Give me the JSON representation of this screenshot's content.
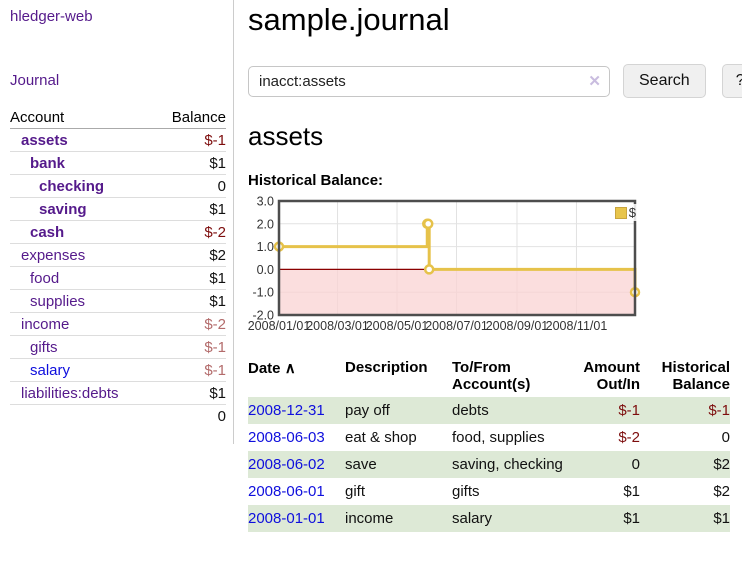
{
  "app": {
    "title": "hledger-web",
    "nav_journal": "Journal"
  },
  "sidebar": {
    "header": {
      "account": "Account",
      "balance": "Balance"
    },
    "rows": [
      {
        "name": "assets",
        "balance": "$-1"
      },
      {
        "name": "bank",
        "balance": "$1"
      },
      {
        "name": "checking",
        "balance": "0"
      },
      {
        "name": "saving",
        "balance": "$1"
      },
      {
        "name": "cash",
        "balance": "$-2"
      },
      {
        "name": "expenses",
        "balance": "$2"
      },
      {
        "name": "food",
        "balance": "$1"
      },
      {
        "name": "supplies",
        "balance": "$1"
      },
      {
        "name": "income",
        "balance": "$-2"
      },
      {
        "name": "gifts",
        "balance": "$-1"
      },
      {
        "name": "salary",
        "balance": "$-1"
      },
      {
        "name": "liabilities:debts",
        "balance": "$1"
      }
    ],
    "total": "0"
  },
  "main": {
    "title": "sample.journal",
    "search": {
      "value": "inacct:assets",
      "clear_icon": "✕",
      "button_label": "Search",
      "help_label": "?"
    },
    "account_heading": "assets",
    "chart_label": "Historical Balance:"
  },
  "chart_data": {
    "type": "line",
    "title": "Historical Balance:",
    "series": [
      {
        "name": "$",
        "color": "#e6c24a",
        "step": true,
        "points": [
          [
            "2008-01-01",
            1
          ],
          [
            "2008-06-01",
            2
          ],
          [
            "2008-06-02",
            2
          ],
          [
            "2008-06-03",
            0
          ],
          [
            "2008-12-31",
            -1
          ]
        ]
      }
    ],
    "x_range": [
      "2008-01-01",
      "2008-12-31"
    ],
    "x_ticks": [
      "2008/01/01",
      "2008/03/01",
      "2008/05/01",
      "2008/07/01",
      "2008/09/01",
      "2008/11/01"
    ],
    "y_ticks": [
      "3.0",
      "2.0",
      "1.0",
      "0.0",
      "-1.0",
      "-2.0"
    ],
    "ylim": [
      -2,
      3
    ],
    "grid": true,
    "legend": {
      "label": "$",
      "position": "top-right"
    },
    "negative_region_color": "#f9d3d3",
    "zero_line_color": "#8b0000"
  },
  "register": {
    "headers": {
      "date": "Date",
      "sort_icon": "∧",
      "description": "Description",
      "tofrom": "To/From Account(s)",
      "amount": "Amount Out/In",
      "balance": "Historical Balance"
    },
    "rows": [
      {
        "date": "2008-12-31",
        "description": "pay off",
        "accounts": "debts",
        "amount": "$-1",
        "balance": "$-1"
      },
      {
        "date": "2008-06-03",
        "description": "eat & shop",
        "accounts": "food, supplies",
        "amount": "$-2",
        "balance": "0"
      },
      {
        "date": "2008-06-02",
        "description": "save",
        "accounts": "saving, checking",
        "amount": "0",
        "balance": "$2"
      },
      {
        "date": "2008-06-01",
        "description": "gift",
        "accounts": "gifts",
        "amount": "$1",
        "balance": "$2"
      },
      {
        "date": "2008-01-01",
        "description": "income",
        "accounts": "salary",
        "amount": "$1",
        "balance": "$1"
      }
    ]
  }
}
